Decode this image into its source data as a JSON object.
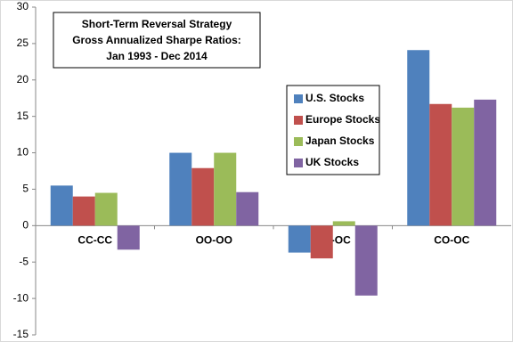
{
  "chart_data": {
    "type": "bar",
    "title": [
      "Short-Term Reversal Strategy",
      "Gross Annualized Sharpe Ratios:",
      "Jan 1993 - Dec 2014"
    ],
    "categories": [
      "CC-CC",
      "OO-OO",
      "OC-OC",
      "CO-OC"
    ],
    "series": [
      {
        "name": "U.S. Stocks",
        "color": "#4f81bd",
        "values": [
          5.5,
          10.0,
          -3.7,
          24.1
        ]
      },
      {
        "name": "Europe Stocks",
        "color": "#c0504d",
        "values": [
          4.0,
          7.9,
          -4.5,
          16.7
        ]
      },
      {
        "name": "Japan Stocks",
        "color": "#9bbb59",
        "values": [
          4.5,
          10.0,
          0.6,
          16.2
        ]
      },
      {
        "name": "UK Stocks",
        "color": "#8064a2",
        "values": [
          -3.3,
          4.6,
          -9.6,
          17.3
        ]
      }
    ],
    "ylim": [
      -15,
      30
    ],
    "yticks": [
      -15,
      -10,
      -5,
      0,
      5,
      10,
      15,
      20,
      25,
      30
    ]
  }
}
